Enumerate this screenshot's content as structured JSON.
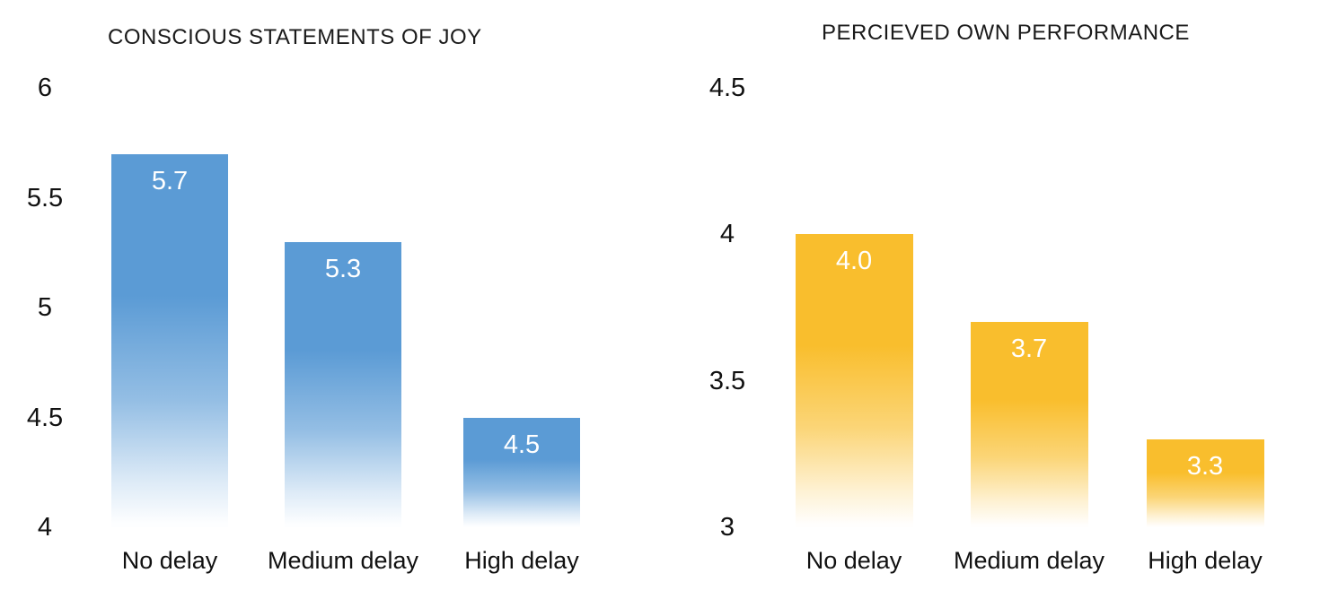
{
  "page": {
    "background_color": "#ffffff",
    "text_color": "#1a1a1a"
  },
  "chart_data": [
    {
      "type": "bar",
      "title": "CONSCIOUS STATEMENTS OF JOY",
      "categories": [
        "No delay",
        "Medium delay",
        "High delay"
      ],
      "values": [
        5.7,
        5.3,
        4.5
      ],
      "value_labels": [
        "5.7",
        "5.3",
        "4.5"
      ],
      "ylim": [
        4,
        6
      ],
      "yticks": [
        6,
        5.5,
        5,
        4.5,
        4
      ],
      "ytick_labels": [
        "6",
        "5.5",
        "5",
        "4.5",
        "4"
      ],
      "xlabel": "",
      "ylabel": "",
      "grid": false,
      "legend": "none",
      "bar_color": "#5B9BD5",
      "bar_fade_to": "#FFFFFF",
      "value_label_color": "#FFFFFF"
    },
    {
      "type": "bar",
      "title": "PERCIEVED OWN PERFORMANCE",
      "categories": [
        "No delay",
        "Medium delay",
        "High delay"
      ],
      "values": [
        4.0,
        3.7,
        3.3
      ],
      "value_labels": [
        "4.0",
        "3.7",
        "3.3"
      ],
      "ylim": [
        3,
        4.5
      ],
      "yticks": [
        4.5,
        4,
        3.5,
        3
      ],
      "ytick_labels": [
        "4.5",
        "4",
        "3.5",
        "3"
      ],
      "xlabel": "",
      "ylabel": "",
      "grid": false,
      "legend": "none",
      "bar_color": "#F9BE2D",
      "bar_fade_to": "#FFFFFF",
      "value_label_color": "#FFFFFF"
    }
  ]
}
